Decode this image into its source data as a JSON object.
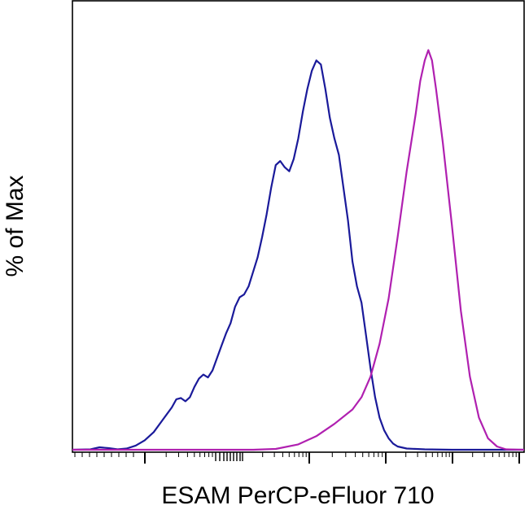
{
  "chart_data": {
    "type": "line",
    "title": "",
    "xlabel": "ESAM PerCP-eFluor 710",
    "ylabel": "% of Max",
    "xscale": "log",
    "xlim": [
      0,
      100
    ],
    "ylim": [
      0,
      100
    ],
    "grid": false,
    "legend": "none",
    "series": [
      {
        "color": "#1a1a9a",
        "points": [
          [
            0,
            0.2
          ],
          [
            4,
            0.3
          ],
          [
            6,
            0.8
          ],
          [
            8,
            0.6
          ],
          [
            10,
            0.3
          ],
          [
            12,
            0.5
          ],
          [
            14,
            1.2
          ],
          [
            16,
            2.5
          ],
          [
            18,
            4.5
          ],
          [
            20,
            7.5
          ],
          [
            22,
            10.5
          ],
          [
            23,
            12.5
          ],
          [
            24,
            12.8
          ],
          [
            25,
            12
          ],
          [
            26,
            13
          ],
          [
            27,
            15.5
          ],
          [
            28,
            17.5
          ],
          [
            29,
            18.5
          ],
          [
            30,
            17.8
          ],
          [
            31,
            19.5
          ],
          [
            32,
            22.5
          ],
          [
            33,
            25.5
          ],
          [
            34,
            28.5
          ],
          [
            35,
            31
          ],
          [
            36,
            35
          ],
          [
            37,
            37.3
          ],
          [
            38,
            38
          ],
          [
            39,
            40
          ],
          [
            40,
            43.5
          ],
          [
            41,
            47
          ],
          [
            42,
            52
          ],
          [
            43,
            57.5
          ],
          [
            44,
            64
          ],
          [
            45,
            69.5
          ],
          [
            46,
            70.5
          ],
          [
            47,
            69
          ],
          [
            48,
            68
          ],
          [
            49,
            71
          ],
          [
            50,
            76
          ],
          [
            51,
            82.5
          ],
          [
            52,
            88
          ],
          [
            53,
            92.5
          ],
          [
            54,
            95
          ],
          [
            55,
            94
          ],
          [
            56,
            88
          ],
          [
            57,
            81
          ],
          [
            58,
            76
          ],
          [
            59,
            72
          ],
          [
            60,
            64
          ],
          [
            61,
            56
          ],
          [
            62,
            46
          ],
          [
            63,
            40
          ],
          [
            64,
            36
          ],
          [
            65,
            28
          ],
          [
            66,
            20
          ],
          [
            67,
            13
          ],
          [
            68,
            8
          ],
          [
            69,
            5
          ],
          [
            70,
            3
          ],
          [
            71,
            1.7
          ],
          [
            72,
            1
          ],
          [
            74,
            0.5
          ],
          [
            78,
            0.3
          ],
          [
            84,
            0.2
          ],
          [
            100,
            0.2
          ]
        ]
      },
      {
        "color": "#b020b0",
        "points": [
          [
            0,
            0.2
          ],
          [
            40,
            0.2
          ],
          [
            45,
            0.4
          ],
          [
            50,
            1.5
          ],
          [
            54,
            3.5
          ],
          [
            58,
            6.5
          ],
          [
            62,
            10
          ],
          [
            64,
            13
          ],
          [
            66,
            18
          ],
          [
            68,
            26
          ],
          [
            70,
            37
          ],
          [
            72,
            52
          ],
          [
            74,
            68
          ],
          [
            76,
            82
          ],
          [
            77,
            90
          ],
          [
            78,
            95
          ],
          [
            78.8,
            97.5
          ],
          [
            79.6,
            95
          ],
          [
            80.5,
            88
          ],
          [
            82,
            75
          ],
          [
            84,
            55
          ],
          [
            86,
            34
          ],
          [
            88,
            18
          ],
          [
            90,
            8
          ],
          [
            92,
            3
          ],
          [
            94,
            1
          ],
          [
            96,
            0.3
          ],
          [
            100,
            0.2
          ]
        ]
      }
    ]
  }
}
